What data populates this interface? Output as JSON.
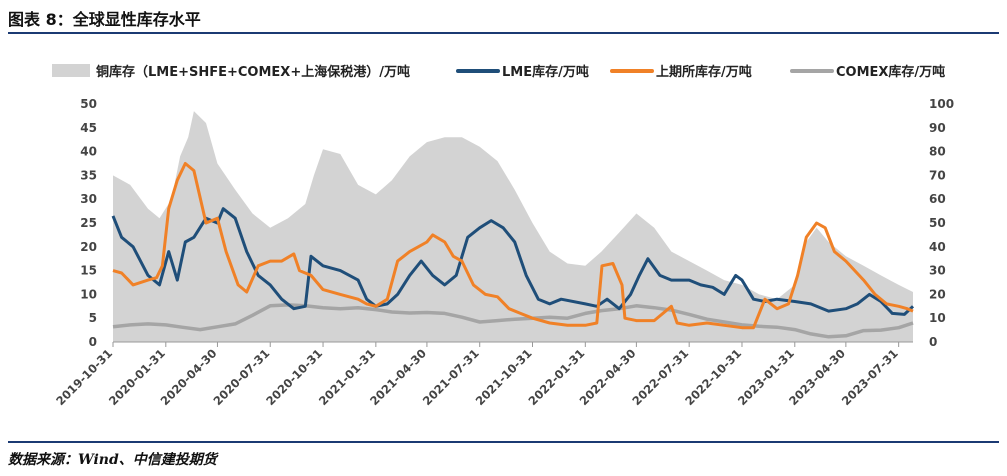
{
  "page": {
    "title": "图表 8：全球显性库存水平",
    "source": "数据来源：Wind、中信建投期货"
  },
  "colors": {
    "area": "#d3d3d3",
    "lme": "#1f4e79",
    "shfe": "#f08127",
    "comex": "#a5a5a5",
    "rule": "#1b3a73"
  },
  "chart_data": {
    "type": "line",
    "y_left": {
      "ylim": [
        0,
        50
      ],
      "ticks": [
        0,
        5,
        10,
        15,
        20,
        25,
        30,
        35,
        40,
        45,
        50
      ]
    },
    "y_right": {
      "ylim": [
        0,
        100
      ],
      "ticks": [
        0,
        10,
        20,
        30,
        40,
        50,
        60,
        70,
        80,
        90,
        100
      ]
    },
    "x_range": [
      "2019-10-31",
      "2023-08-25"
    ],
    "x_ticks": [
      "2019-10-31",
      "2020-01-31",
      "2020-04-30",
      "2020-07-31",
      "2020-10-31",
      "2021-01-31",
      "2021-04-30",
      "2021-07-31",
      "2021-10-31",
      "2022-01-31",
      "2022-04-30",
      "2022-07-31",
      "2022-10-31",
      "2023-01-31",
      "2023-04-30",
      "2023-07-31"
    ],
    "legend_position": "top",
    "series": [
      {
        "name": "铜库存（LME+SHFE+COMEX+上海保税港）/万吨",
        "type": "area",
        "axis": "right",
        "points": [
          [
            "2019-10-31",
            70
          ],
          [
            "2019-11-30",
            66
          ],
          [
            "2019-12-31",
            56
          ],
          [
            "2020-01-20",
            52
          ],
          [
            "2020-02-10",
            60
          ],
          [
            "2020-02-25",
            78
          ],
          [
            "2020-03-10",
            86
          ],
          [
            "2020-03-20",
            97
          ],
          [
            "2020-04-10",
            92
          ],
          [
            "2020-04-30",
            75
          ],
          [
            "2020-05-31",
            64
          ],
          [
            "2020-06-30",
            54
          ],
          [
            "2020-07-31",
            48
          ],
          [
            "2020-08-31",
            52
          ],
          [
            "2020-09-30",
            58
          ],
          [
            "2020-10-15",
            70
          ],
          [
            "2020-10-31",
            81
          ],
          [
            "2020-11-30",
            79
          ],
          [
            "2020-12-31",
            66
          ],
          [
            "2021-01-31",
            62
          ],
          [
            "2021-02-28",
            68
          ],
          [
            "2021-03-31",
            78
          ],
          [
            "2021-04-30",
            84
          ],
          [
            "2021-05-31",
            86
          ],
          [
            "2021-06-30",
            86
          ],
          [
            "2021-07-31",
            82
          ],
          [
            "2021-08-31",
            76
          ],
          [
            "2021-09-30",
            64
          ],
          [
            "2021-10-31",
            50
          ],
          [
            "2021-11-30",
            38
          ],
          [
            "2021-12-31",
            33
          ],
          [
            "2022-01-31",
            32
          ],
          [
            "2022-02-28",
            38
          ],
          [
            "2022-03-31",
            46
          ],
          [
            "2022-04-30",
            54
          ],
          [
            "2022-05-31",
            48
          ],
          [
            "2022-06-30",
            38
          ],
          [
            "2022-07-31",
            34
          ],
          [
            "2022-08-31",
            30
          ],
          [
            "2022-09-30",
            26
          ],
          [
            "2022-10-31",
            24
          ],
          [
            "2022-11-30",
            20
          ],
          [
            "2022-12-31",
            18
          ],
          [
            "2023-01-31",
            24
          ],
          [
            "2023-02-20",
            42
          ],
          [
            "2023-03-10",
            48
          ],
          [
            "2023-03-31",
            42
          ],
          [
            "2023-04-30",
            36
          ],
          [
            "2023-05-31",
            32
          ],
          [
            "2023-06-30",
            28
          ],
          [
            "2023-07-31",
            24
          ],
          [
            "2023-08-25",
            21
          ]
        ]
      },
      {
        "name": "LME库存/万吨",
        "type": "line",
        "axis": "left",
        "points": [
          [
            "2019-10-31",
            26.5
          ],
          [
            "2019-11-15",
            22
          ],
          [
            "2019-12-05",
            20
          ],
          [
            "2019-12-31",
            14
          ],
          [
            "2020-01-20",
            12
          ],
          [
            "2020-02-05",
            19
          ],
          [
            "2020-02-20",
            13
          ],
          [
            "2020-03-05",
            21
          ],
          [
            "2020-03-20",
            22
          ],
          [
            "2020-04-10",
            26
          ],
          [
            "2020-04-30",
            25
          ],
          [
            "2020-05-10",
            28
          ],
          [
            "2020-05-31",
            26
          ],
          [
            "2020-06-20",
            19
          ],
          [
            "2020-07-10",
            14
          ],
          [
            "2020-07-31",
            12
          ],
          [
            "2020-08-20",
            9
          ],
          [
            "2020-09-10",
            7
          ],
          [
            "2020-09-30",
            7.5
          ],
          [
            "2020-10-10",
            18
          ],
          [
            "2020-10-31",
            16
          ],
          [
            "2020-11-30",
            15
          ],
          [
            "2020-12-31",
            13
          ],
          [
            "2021-01-15",
            9
          ],
          [
            "2021-01-31",
            7.5
          ],
          [
            "2021-02-20",
            8
          ],
          [
            "2021-03-10",
            10
          ],
          [
            "2021-03-31",
            14
          ],
          [
            "2021-04-20",
            17
          ],
          [
            "2021-05-10",
            14
          ],
          [
            "2021-05-31",
            12
          ],
          [
            "2021-06-20",
            14
          ],
          [
            "2021-07-10",
            22
          ],
          [
            "2021-07-31",
            24
          ],
          [
            "2021-08-20",
            25.5
          ],
          [
            "2021-09-10",
            24
          ],
          [
            "2021-09-30",
            21
          ],
          [
            "2021-10-20",
            14
          ],
          [
            "2021-11-10",
            9
          ],
          [
            "2021-11-30",
            8
          ],
          [
            "2021-12-20",
            9
          ],
          [
            "2022-01-31",
            8
          ],
          [
            "2022-02-20",
            7.5
          ],
          [
            "2022-03-10",
            9
          ],
          [
            "2022-03-31",
            7
          ],
          [
            "2022-04-20",
            10
          ],
          [
            "2022-05-05",
            14
          ],
          [
            "2022-05-20",
            17.5
          ],
          [
            "2022-06-10",
            14
          ],
          [
            "2022-06-30",
            13
          ],
          [
            "2022-07-31",
            13
          ],
          [
            "2022-08-20",
            12
          ],
          [
            "2022-09-10",
            11.5
          ],
          [
            "2022-09-30",
            10
          ],
          [
            "2022-10-20",
            14
          ],
          [
            "2022-10-31",
            13
          ],
          [
            "2022-11-20",
            9
          ],
          [
            "2022-12-10",
            8.5
          ],
          [
            "2022-12-31",
            9
          ],
          [
            "2023-01-31",
            8.5
          ],
          [
            "2023-02-28",
            8
          ],
          [
            "2023-03-31",
            6.5
          ],
          [
            "2023-04-30",
            7
          ],
          [
            "2023-05-20",
            8
          ],
          [
            "2023-06-10",
            10
          ],
          [
            "2023-06-30",
            8.5
          ],
          [
            "2023-07-20",
            6
          ],
          [
            "2023-08-10",
            5.8
          ],
          [
            "2023-08-25",
            7.5
          ]
        ]
      },
      {
        "name": "上期所库存/万吨",
        "type": "line",
        "axis": "left",
        "points": [
          [
            "2019-10-31",
            15
          ],
          [
            "2019-11-15",
            14.5
          ],
          [
            "2019-12-05",
            12
          ],
          [
            "2019-12-31",
            13
          ],
          [
            "2020-01-15",
            13.5
          ],
          [
            "2020-01-25",
            16
          ],
          [
            "2020-02-05",
            28
          ],
          [
            "2020-02-20",
            34
          ],
          [
            "2020-03-05",
            37.5
          ],
          [
            "2020-03-20",
            36
          ],
          [
            "2020-04-10",
            25
          ],
          [
            "2020-04-30",
            26
          ],
          [
            "2020-05-15",
            19
          ],
          [
            "2020-06-05",
            12
          ],
          [
            "2020-06-20",
            10.5
          ],
          [
            "2020-07-10",
            16
          ],
          [
            "2020-07-31",
            17
          ],
          [
            "2020-08-20",
            17
          ],
          [
            "2020-09-10",
            18.5
          ],
          [
            "2020-09-20",
            15
          ],
          [
            "2020-10-10",
            14
          ],
          [
            "2020-10-31",
            11
          ],
          [
            "2020-11-30",
            10
          ],
          [
            "2020-12-31",
            9
          ],
          [
            "2021-01-15",
            8
          ],
          [
            "2021-01-31",
            7.5
          ],
          [
            "2021-02-20",
            9
          ],
          [
            "2021-03-10",
            17
          ],
          [
            "2021-03-31",
            19
          ],
          [
            "2021-04-15",
            20
          ],
          [
            "2021-04-30",
            21
          ],
          [
            "2021-05-10",
            22.5
          ],
          [
            "2021-05-31",
            21
          ],
          [
            "2021-06-15",
            18
          ],
          [
            "2021-06-30",
            17
          ],
          [
            "2021-07-20",
            12
          ],
          [
            "2021-08-10",
            10
          ],
          [
            "2021-08-31",
            9.5
          ],
          [
            "2021-09-20",
            7
          ],
          [
            "2021-10-10",
            6
          ],
          [
            "2021-10-31",
            5
          ],
          [
            "2021-11-30",
            4
          ],
          [
            "2021-12-31",
            3.5
          ],
          [
            "2022-01-31",
            3.5
          ],
          [
            "2022-02-20",
            4
          ],
          [
            "2022-03-01",
            16
          ],
          [
            "2022-03-20",
            16.5
          ],
          [
            "2022-04-05",
            12
          ],
          [
            "2022-04-10",
            5
          ],
          [
            "2022-04-30",
            4.5
          ],
          [
            "2022-05-31",
            4.5
          ],
          [
            "2022-06-30",
            7.5
          ],
          [
            "2022-07-10",
            4
          ],
          [
            "2022-07-31",
            3.5
          ],
          [
            "2022-08-31",
            4
          ],
          [
            "2022-09-30",
            3.5
          ],
          [
            "2022-10-31",
            3
          ],
          [
            "2022-11-20",
            3
          ],
          [
            "2022-12-10",
            9
          ],
          [
            "2022-12-31",
            7
          ],
          [
            "2023-01-20",
            8
          ],
          [
            "2023-02-05",
            14
          ],
          [
            "2023-02-20",
            22
          ],
          [
            "2023-03-10",
            25
          ],
          [
            "2023-03-25",
            24
          ],
          [
            "2023-04-10",
            19
          ],
          [
            "2023-04-30",
            17
          ],
          [
            "2023-05-31",
            13
          ],
          [
            "2023-06-20",
            10
          ],
          [
            "2023-07-10",
            8
          ],
          [
            "2023-07-31",
            7.5
          ],
          [
            "2023-08-15",
            7
          ],
          [
            "2023-08-25",
            6.5
          ]
        ]
      },
      {
        "name": "COMEX库存/万吨",
        "type": "line",
        "axis": "left",
        "points": [
          [
            "2019-10-31",
            3.2
          ],
          [
            "2019-11-30",
            3.6
          ],
          [
            "2019-12-31",
            3.8
          ],
          [
            "2020-01-31",
            3.6
          ],
          [
            "2020-02-28",
            3.1
          ],
          [
            "2020-03-31",
            2.6
          ],
          [
            "2020-04-30",
            3.2
          ],
          [
            "2020-05-31",
            3.8
          ],
          [
            "2020-06-30",
            5.6
          ],
          [
            "2020-07-31",
            7.6
          ],
          [
            "2020-08-31",
            7.8
          ],
          [
            "2020-09-30",
            7.6
          ],
          [
            "2020-10-31",
            7.2
          ],
          [
            "2020-11-30",
            7.0
          ],
          [
            "2020-12-31",
            7.2
          ],
          [
            "2021-01-31",
            6.8
          ],
          [
            "2021-02-28",
            6.3
          ],
          [
            "2021-03-31",
            6.1
          ],
          [
            "2021-04-30",
            6.2
          ],
          [
            "2021-05-31",
            6.0
          ],
          [
            "2021-06-30",
            5.2
          ],
          [
            "2021-07-31",
            4.2
          ],
          [
            "2021-08-31",
            4.5
          ],
          [
            "2021-09-30",
            4.8
          ],
          [
            "2021-10-31",
            5.0
          ],
          [
            "2021-11-30",
            5.2
          ],
          [
            "2021-12-31",
            5.0
          ],
          [
            "2022-01-31",
            6.0
          ],
          [
            "2022-02-28",
            6.6
          ],
          [
            "2022-03-31",
            7.0
          ],
          [
            "2022-04-30",
            7.6
          ],
          [
            "2022-05-31",
            7.2
          ],
          [
            "2022-06-30",
            6.7
          ],
          [
            "2022-07-31",
            5.8
          ],
          [
            "2022-08-31",
            4.8
          ],
          [
            "2022-09-30",
            4.2
          ],
          [
            "2022-10-31",
            3.6
          ],
          [
            "2022-11-30",
            3.3
          ],
          [
            "2022-12-31",
            3.1
          ],
          [
            "2023-01-31",
            2.6
          ],
          [
            "2023-02-28",
            1.7
          ],
          [
            "2023-03-31",
            1.1
          ],
          [
            "2023-04-30",
            1.3
          ],
          [
            "2023-05-31",
            2.4
          ],
          [
            "2023-06-30",
            2.5
          ],
          [
            "2023-07-31",
            3.0
          ],
          [
            "2023-08-25",
            4.0
          ]
        ]
      }
    ]
  }
}
